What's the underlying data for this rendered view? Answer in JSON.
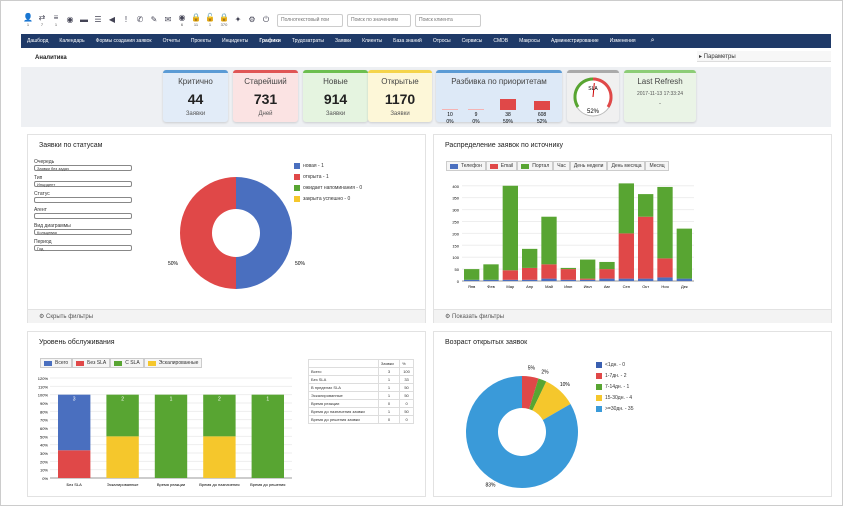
{
  "toolbar": {
    "icons": [
      {
        "name": "user-icon",
        "glyph": "👤",
        "badge": "1"
      },
      {
        "name": "sync-icon",
        "glyph": "⇄",
        "badge": "7"
      },
      {
        "name": "list-icon",
        "glyph": "≡",
        "badge": "1"
      },
      {
        "name": "eye-icon",
        "glyph": "◉",
        "badge": ""
      },
      {
        "name": "folder-icon",
        "glyph": "▬",
        "badge": ""
      },
      {
        "name": "tasks-icon",
        "glyph": "☰",
        "badge": ""
      },
      {
        "name": "megaphone-icon",
        "glyph": "◀",
        "badge": ""
      },
      {
        "name": "alert-icon",
        "glyph": "!",
        "badge": ""
      },
      {
        "name": "phone-icon",
        "glyph": "✆",
        "badge": ""
      },
      {
        "name": "edit-icon",
        "glyph": "✎",
        "badge": ""
      },
      {
        "name": "mail-icon",
        "glyph": "✉",
        "badge": ""
      },
      {
        "name": "view-icon",
        "glyph": "◉",
        "badge": "6"
      },
      {
        "name": "lock-icon",
        "glyph": "🔒",
        "badge": "11"
      },
      {
        "name": "lock-open-icon",
        "glyph": "🔓",
        "badge": "1"
      },
      {
        "name": "lock-alt-icon",
        "glyph": "🔒",
        "badge": "370"
      },
      {
        "name": "wrench-icon",
        "glyph": "✦",
        "badge": ""
      },
      {
        "name": "gear-icon",
        "glyph": "⚙",
        "badge": ""
      },
      {
        "name": "power-icon",
        "glyph": "⏻",
        "badge": ""
      }
    ],
    "search_fulltext_placeholder": "Полнотекстовый пои",
    "search_numbers_placeholder": "Поиск по значениям",
    "search_client_placeholder": "Поиск клиента"
  },
  "nav": [
    "Дашборд",
    "Календарь",
    "Формы создания заявок",
    "Отчеты",
    "Проекты",
    "Инциденты",
    "Графики",
    "Трудозатраты",
    "Заявки",
    "Клиенты",
    "База знаний",
    "Отросы",
    "Сервисы",
    "CMDB",
    "Макросы",
    "Администрирование",
    "Изменения"
  ],
  "nav_active_index": 6,
  "page_title": "Аналитика",
  "params_label": "▸ Параметры",
  "cards": [
    {
      "header": "Критично",
      "number": "44",
      "sub": "Заявки"
    },
    {
      "header": "Старейший",
      "number": "731",
      "sub": "Дней"
    },
    {
      "header": "Новые",
      "number": "914",
      "sub": "Заявки"
    },
    {
      "header": "Открытые",
      "number": "1170",
      "sub": "Заявки"
    }
  ],
  "priority": {
    "title": "Разбивка по приоритетам",
    "counts": [
      "10",
      "9",
      "38",
      "608"
    ],
    "percents": [
      "0%",
      "0%",
      "59%",
      "52%"
    ],
    "bar_levels": [
      0.05,
      0.05,
      0.55,
      0.45
    ]
  },
  "sla_gauge": {
    "label": "SLA",
    "percent": "52%",
    "value": 0.52
  },
  "last_refresh": {
    "title": "Last Refresh",
    "time": "2017-11-13 17:33:24",
    "sub": "-"
  },
  "status_panel": {
    "title": "Заявки по статусам",
    "filters": [
      {
        "label": "Очередь",
        "value": "Заявки без задач"
      },
      {
        "label": "Тип",
        "value": "Инцидент"
      },
      {
        "label": "Статус",
        "value": ""
      },
      {
        "label": "Агент",
        "value": ""
      },
      {
        "label": "Вид диаграммы",
        "value": "Кольцевая"
      },
      {
        "label": "Период",
        "value": "Год"
      }
    ],
    "legend": [
      "новая - 1",
      "открыта - 1",
      "ожидает напоминания - 0",
      "закрыта успешно - 0"
    ],
    "left_percent": "50%",
    "right_percent": "50%",
    "footer": "⚙ Скрыть фильтры"
  },
  "source_panel": {
    "title": "Распределение заявок по источнику",
    "tabs": [
      "Телефон",
      "Email",
      "Портал",
      "Час",
      "День недели",
      "День месяца",
      "Месяц"
    ],
    "footer": "⚙ Показать фильтры"
  },
  "sla_panel": {
    "title": "Уровень обслуживания",
    "legend": [
      "Всего",
      "Без SLA",
      "С SLA",
      "Эскалированные"
    ],
    "table_headers": [
      "",
      "Заявки",
      "%"
    ],
    "table_rows": [
      [
        "Всего",
        "3",
        "100"
      ],
      [
        "Без SLA",
        "1",
        "33"
      ],
      [
        "В пределах SLA",
        "1",
        "50"
      ],
      [
        "Эскалированные",
        "1",
        "50"
      ],
      [
        "Время реакции",
        "0",
        "0"
      ],
      [
        "Время до назначения заявки",
        "1",
        "50"
      ],
      [
        "Время до решения заявки",
        "0",
        "0"
      ]
    ]
  },
  "age_panel": {
    "title": "Возраст открытых заявок",
    "legend": [
      "<1дн. - 0",
      "1-7дн. - 2",
      "7-14дн. - 1",
      "15-30дн. - 4",
      ">=30дн. - 35"
    ]
  },
  "colors": {
    "blue": "#4a6fbf",
    "red": "#e04848",
    "green": "#58a532",
    "yellow": "#f5c72c",
    "sky": "#3a9ad9",
    "navbar": "#1f3a68"
  },
  "chart_data": [
    {
      "type": "pie",
      "title": "Заявки по статусам",
      "labels": [
        "новая",
        "открыта",
        "ожидает напоминания",
        "закрыта успешно"
      ],
      "values": [
        1,
        1,
        0,
        0
      ],
      "donut": true
    },
    {
      "type": "bar",
      "stacked": true,
      "title": "Распределение заявок по источнику",
      "categories": [
        "Янв",
        "Фев",
        "Мар",
        "Апр",
        "Май",
        "Июн",
        "Июл",
        "Авг",
        "Сен",
        "Окт",
        "Ноя",
        "Дек"
      ],
      "series": [
        {
          "name": "Телефон",
          "values": [
            5,
            5,
            5,
            5,
            10,
            5,
            5,
            10,
            10,
            10,
            15,
            10
          ]
        },
        {
          "name": "Email",
          "values": [
            0,
            0,
            40,
            50,
            60,
            45,
            5,
            40,
            190,
            260,
            80,
            0
          ]
        },
        {
          "name": "Портал",
          "values": [
            45,
            65,
            355,
            80,
            200,
            5,
            80,
            30,
            210,
            95,
            300,
            210
          ]
        }
      ],
      "yticks": [
        0,
        50,
        100,
        150,
        200,
        250,
        300,
        350,
        400
      ],
      "ylim": [
        0,
        420
      ]
    },
    {
      "type": "bar",
      "stacked": true,
      "title": "Уровень обслуживания",
      "categories": [
        "Без SLA",
        "Эскалированные",
        "Время реакции",
        "Время до назначения",
        "Время до решения"
      ],
      "series": [
        {
          "name": "Всего",
          "values": [
            66.7,
            0,
            0,
            0,
            0
          ]
        },
        {
          "name": "Без SLA",
          "values": [
            33.3,
            0,
            0,
            0,
            0
          ]
        },
        {
          "name": "С SLA",
          "values": [
            0,
            50,
            100,
            50,
            100
          ]
        },
        {
          "name": "Эскалированные",
          "values": [
            0,
            50,
            0,
            50,
            0
          ]
        }
      ],
      "top_labels": [
        "3",
        "2",
        "1",
        "2",
        "1"
      ],
      "yticks": [
        "0%",
        "10%",
        "20%",
        "30%",
        "40%",
        "50%",
        "60%",
        "70%",
        "80%",
        "90%",
        "100%",
        "110%",
        "120%"
      ],
      "ylim": [
        0,
        120
      ]
    },
    {
      "type": "pie",
      "title": "Возраст открытых заявок",
      "labels": [
        "<1дн.",
        "1-7дн.",
        "7-14дн.",
        "15-30дн.",
        ">=30дн."
      ],
      "values": [
        0,
        2,
        1,
        4,
        35
      ],
      "slice_labels": [
        "",
        "5%",
        "2%",
        "10%",
        "83%"
      ],
      "donut": true
    }
  ]
}
